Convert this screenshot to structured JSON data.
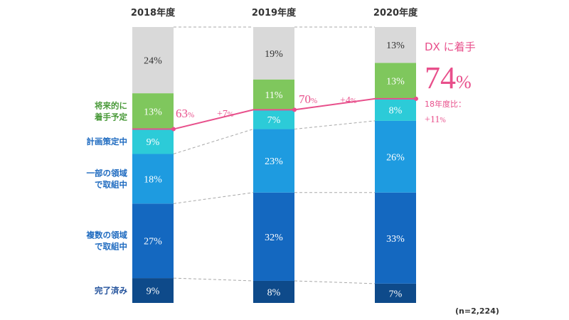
{
  "chart_data": {
    "type": "bar",
    "stacked": true,
    "percent": true,
    "categories": [
      "2018年度",
      "2019年度",
      "2020年度"
    ],
    "series": [
      {
        "name": "完了済み",
        "label_lines": [
          "完了済み"
        ],
        "values": [
          9,
          8,
          7
        ],
        "color": "#0e4a8a",
        "label_color": "#1f4f9a"
      },
      {
        "name": "複数の領域で取組中",
        "label_lines": [
          "複数の領域",
          "で取組中"
        ],
        "values": [
          27,
          32,
          33
        ],
        "color": "#1468c0",
        "label_color": "#1f6bc0"
      },
      {
        "name": "一部の領域で取組中",
        "label_lines": [
          "一部の領域",
          "で取組中"
        ],
        "values": [
          18,
          23,
          26
        ],
        "color": "#1e9be0",
        "label_color": "#1f6bc0"
      },
      {
        "name": "計画策定中",
        "label_lines": [
          "計画策定中"
        ],
        "values": [
          9,
          7,
          8
        ],
        "color": "#2ccbd8",
        "label_color": "#1f6bc0"
      },
      {
        "name": "将来的に着手予定",
        "label_lines": [
          "将来的に",
          "着手予定"
        ],
        "values": [
          13,
          11,
          13
        ],
        "color": "#7fc75d",
        "label_color": "#4a9a3a"
      },
      {
        "name": "",
        "label_lines": [],
        "values": [
          24,
          19,
          13
        ],
        "color": "#d9d9d9",
        "label_color": "#333333"
      }
    ],
    "value_labels": [
      [
        "9%",
        "27%",
        "18%",
        "9%",
        "13%",
        "24%"
      ],
      [
        "8%",
        "32%",
        "23%",
        "7%",
        "11%",
        "19%"
      ],
      [
        "7%",
        "33%",
        "26%",
        "8%",
        "13%",
        "13%"
      ]
    ],
    "ylim": [
      0,
      100
    ],
    "grid": false,
    "legend": "left",
    "dx_line": {
      "values": [
        63,
        70,
        74
      ],
      "labels": [
        "63%",
        "70%",
        "74%"
      ],
      "changes": [
        "+7%",
        "+4%"
      ],
      "color": "#e84f8b"
    },
    "annotations": {
      "dx_title": "DX に着手",
      "dx_value": "74%",
      "comparison_label": "18年度比：",
      "comparison_value": "+11%"
    },
    "note": "(n=2,224)"
  }
}
